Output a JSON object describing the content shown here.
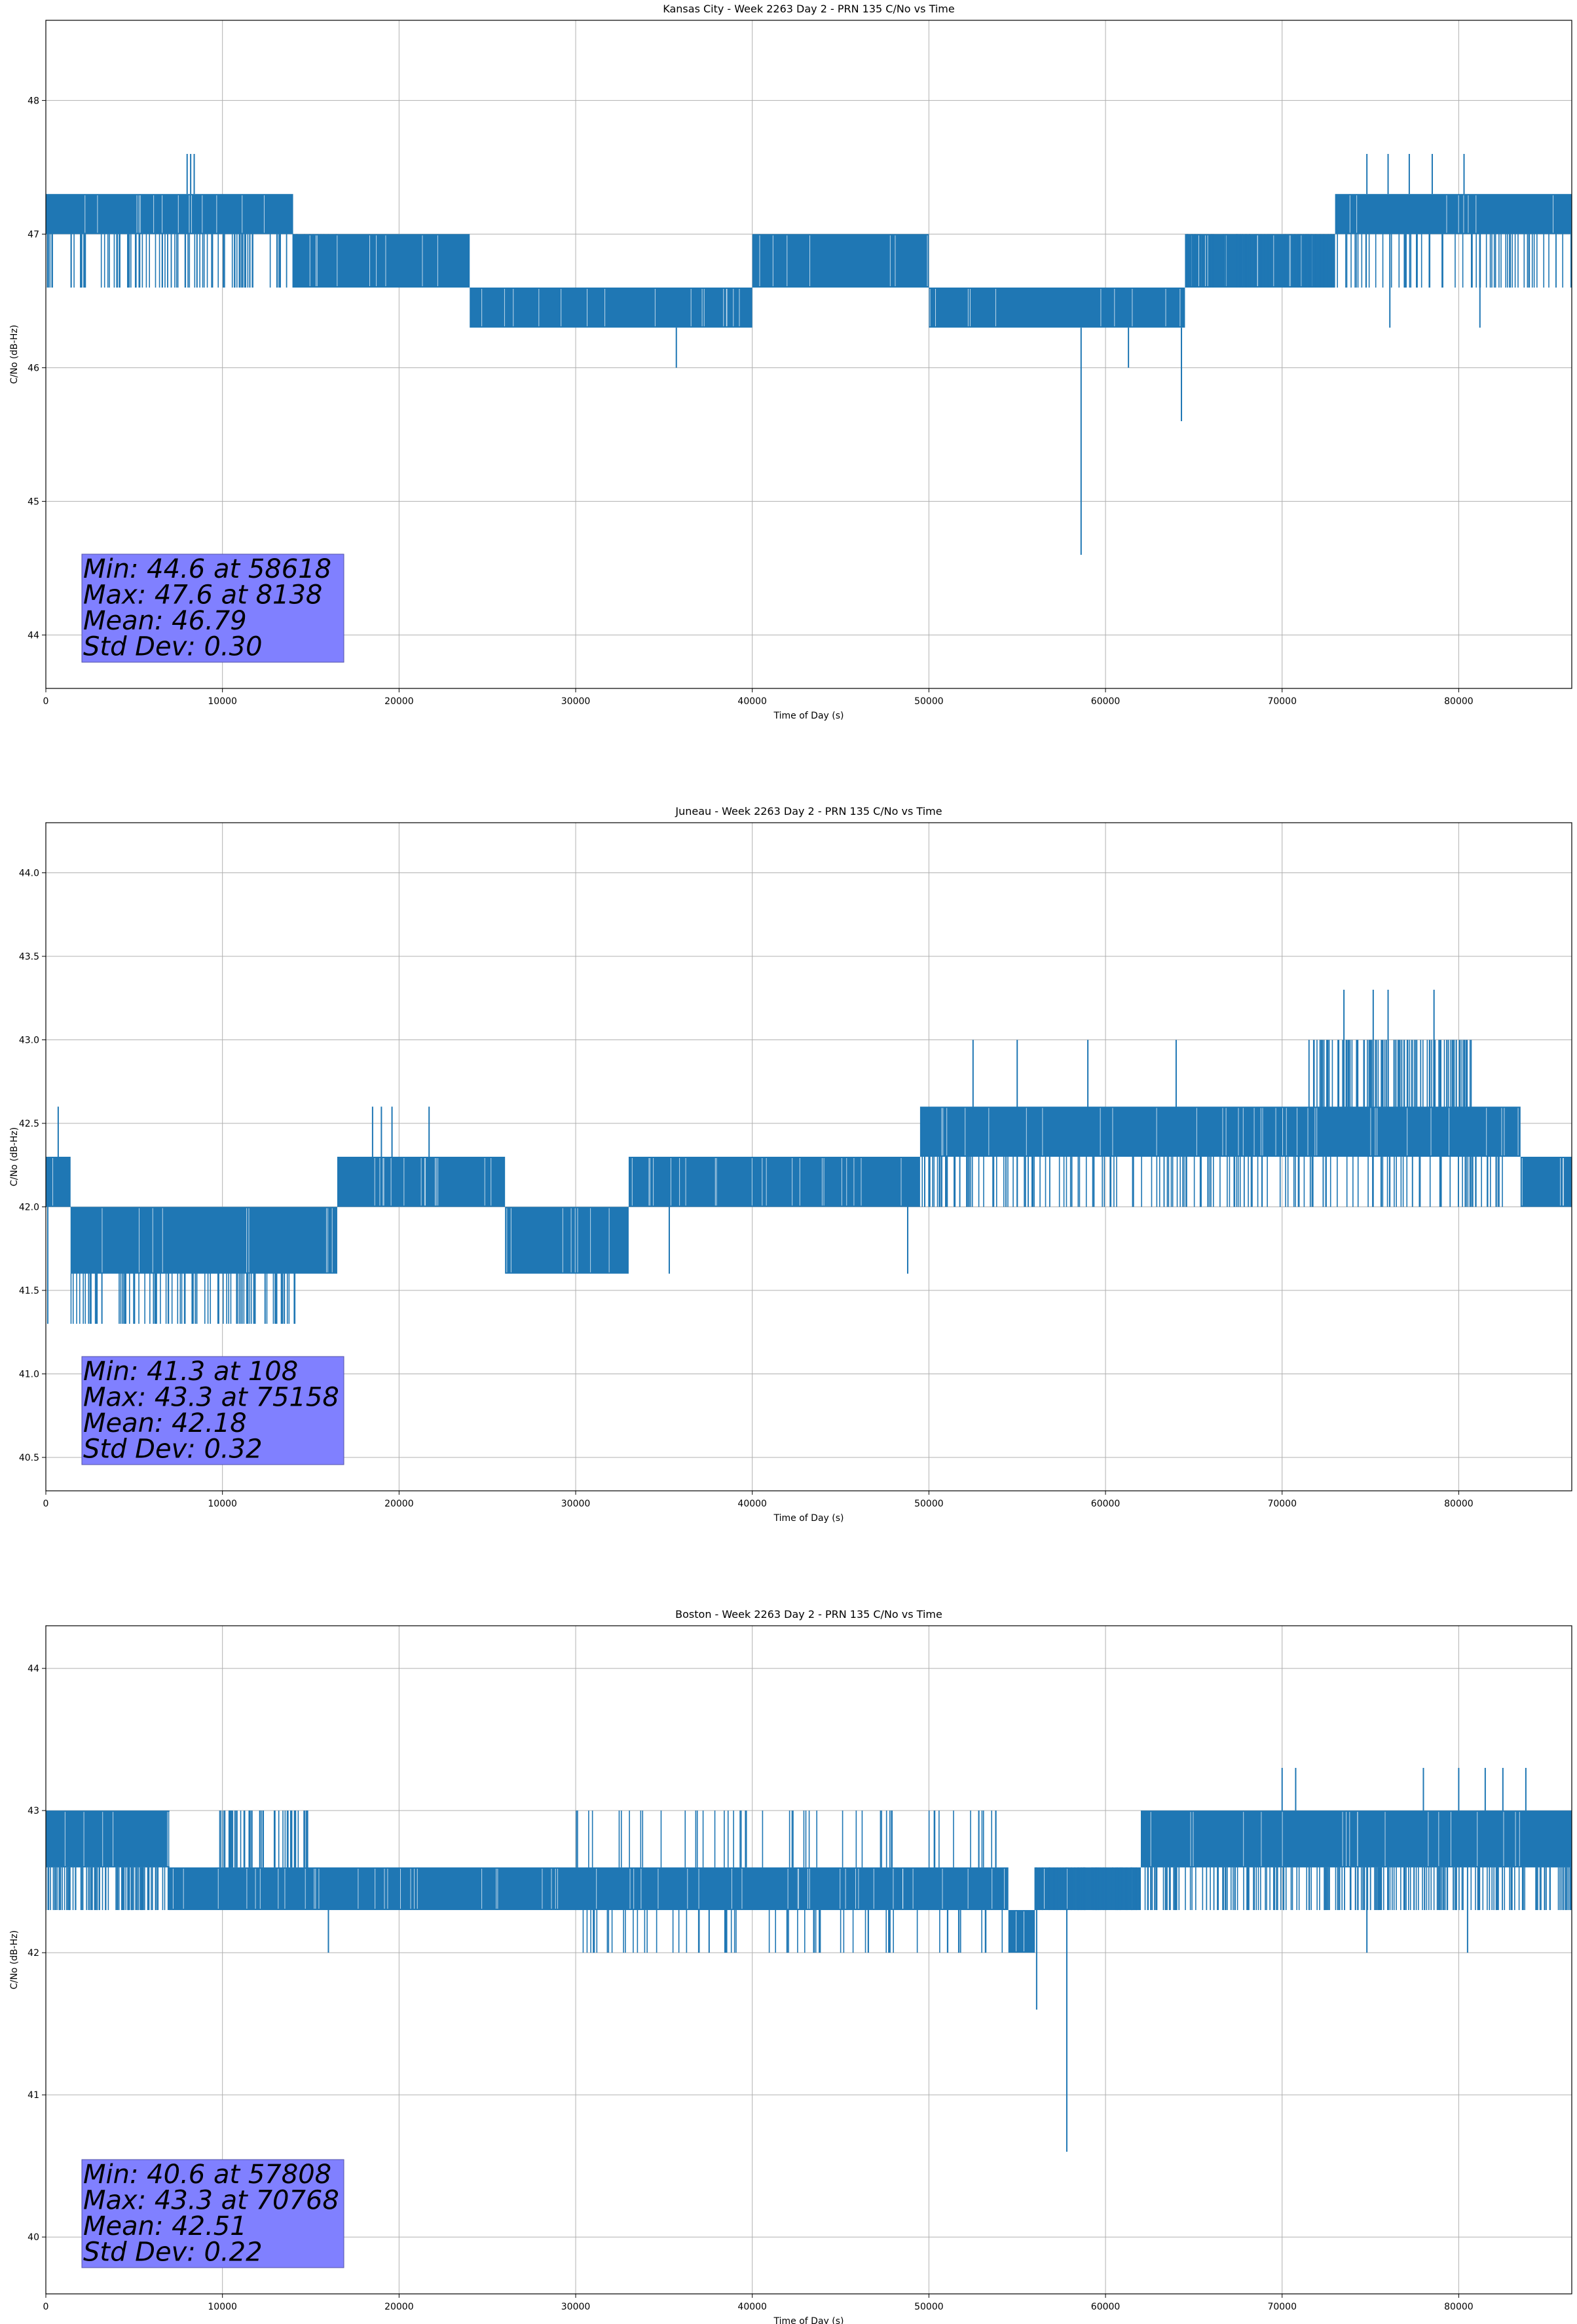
{
  "figure": {
    "background": "#ffffff",
    "line_color": "#1f77b4",
    "stats_box_color": "#8080ff",
    "grid_color": "#b0b0b0"
  },
  "chart_data": [
    {
      "type": "line",
      "title": "Kansas City - Week 2263 Day 2 - PRN 135 C/No vs Time",
      "xlabel": "Time of Day (s)",
      "ylabel": "C/No (dB-Hz)",
      "xlim": [
        0,
        86400
      ],
      "ylim": [
        43.6,
        48.6
      ],
      "xticks": [
        0,
        10000,
        20000,
        30000,
        40000,
        50000,
        60000,
        70000,
        80000
      ],
      "yticks": [
        44,
        45,
        46,
        47,
        48
      ],
      "ytick_labels": [
        "44",
        "45",
        "46",
        "47",
        "48"
      ],
      "grid": true,
      "series": [
        {
          "segments": [
            {
              "x": [
                0,
                14000
              ],
              "upper": 47.3,
              "lower": 47.0
            },
            {
              "x": [
                0,
                16500
              ],
              "upper": 47.0,
              "lower": 46.6,
              "density": 0.25
            },
            {
              "x": [
                14000,
                24000
              ],
              "upper": 47.0,
              "lower": 46.6
            },
            {
              "x": [
                24000,
                40000
              ],
              "upper": 46.6,
              "lower": 46.3
            },
            {
              "x": [
                40000,
                50000
              ],
              "upper": 47.0,
              "lower": 46.6
            },
            {
              "x": [
                50000,
                64500
              ],
              "upper": 46.6,
              "lower": 46.3
            },
            {
              "x": [
                64500,
                73000
              ],
              "upper": 47.0,
              "lower": 46.6
            },
            {
              "x": [
                73000,
                86400
              ],
              "upper": 47.3,
              "lower": 47.0
            },
            {
              "x": [
                64500,
                86400
              ],
              "upper": 47.0,
              "lower": 46.6,
              "density": 0.2
            }
          ],
          "spikes_up": [
            [
              8000,
              47.6
            ],
            [
              8200,
              47.6
            ],
            [
              8400,
              47.6
            ],
            [
              74800,
              47.6
            ],
            [
              76000,
              47.6
            ],
            [
              77200,
              47.6
            ],
            [
              78500,
              47.6
            ],
            [
              80300,
              47.6
            ]
          ],
          "spikes_down": [
            [
              35700,
              46.0
            ],
            [
              58618,
              44.6
            ],
            [
              61300,
              46.0
            ],
            [
              64300,
              45.6
            ],
            [
              76100,
              46.3
            ],
            [
              81200,
              46.3
            ]
          ]
        }
      ],
      "stats": {
        "min": "Min: 44.6 at 58618",
        "max": "Max: 47.6 at 8138",
        "mean": "Mean: 46.79",
        "std": "Std Dev: 0.30"
      }
    },
    {
      "type": "line",
      "title": "Juneau - Week 2263 Day 2 - PRN 135 C/No vs Time",
      "xlabel": "Time of Day (s)",
      "ylabel": "C/No (dB-Hz)",
      "xlim": [
        0,
        86400
      ],
      "ylim": [
        40.3,
        44.3
      ],
      "xticks": [
        0,
        10000,
        20000,
        30000,
        40000,
        50000,
        60000,
        70000,
        80000
      ],
      "yticks": [
        40.5,
        41.0,
        41.5,
        42.0,
        42.5,
        43.0,
        43.5,
        44.0
      ],
      "ytick_labels": [
        "40.5",
        "41.0",
        "41.5",
        "42.0",
        "42.5",
        "43.0",
        "43.5",
        "44.0"
      ],
      "grid": true,
      "series": [
        {
          "segments": [
            {
              "x": [
                0,
                1400
              ],
              "upper": 42.3,
              "lower": 42.0
            },
            {
              "x": [
                1400,
                16500
              ],
              "upper": 42.0,
              "lower": 41.6
            },
            {
              "x": [
                1400,
                14500
              ],
              "upper": 41.6,
              "lower": 41.3,
              "density": 0.25
            },
            {
              "x": [
                16500,
                26000
              ],
              "upper": 42.3,
              "lower": 42.0
            },
            {
              "x": [
                26000,
                33000
              ],
              "upper": 42.0,
              "lower": 41.6
            },
            {
              "x": [
                33000,
                49500
              ],
              "upper": 42.3,
              "lower": 42.0
            },
            {
              "x": [
                49500,
                83500
              ],
              "upper": 42.6,
              "lower": 42.3
            },
            {
              "x": [
                71500,
                81000
              ],
              "upper": 43.0,
              "lower": 42.6,
              "density": 0.45
            },
            {
              "x": [
                49500,
                83500
              ],
              "upper": 42.3,
              "lower": 42.0,
              "density": 0.2
            },
            {
              "x": [
                83500,
                86400
              ],
              "upper": 42.3,
              "lower": 42.0
            }
          ],
          "spikes_up": [
            [
              700,
              42.6
            ],
            [
              18500,
              42.6
            ],
            [
              19000,
              42.6
            ],
            [
              19600,
              42.6
            ],
            [
              21700,
              42.6
            ],
            [
              52500,
              43.0
            ],
            [
              55000,
              43.0
            ],
            [
              59000,
              43.0
            ],
            [
              64000,
              43.0
            ],
            [
              73500,
              43.3
            ],
            [
              75158,
              43.3
            ],
            [
              76000,
              43.3
            ],
            [
              78600,
              43.3
            ]
          ],
          "spikes_down": [
            [
              108,
              41.3
            ],
            [
              48800,
              41.6
            ],
            [
              35300,
              41.6
            ]
          ]
        }
      ],
      "stats": {
        "min": "Min: 41.3 at 108",
        "max": "Max: 43.3 at 75158",
        "mean": "Mean: 42.18",
        "std": "Std Dev: 0.32"
      }
    },
    {
      "type": "line",
      "title": "Boston - Week 2263 Day 2 - PRN 135 C/No vs Time",
      "xlabel": "Time of Day (s)",
      "ylabel": "C/No (dB-Hz)",
      "xlim": [
        0,
        86400
      ],
      "ylim": [
        39.6,
        44.3
      ],
      "xticks": [
        0,
        10000,
        20000,
        30000,
        40000,
        50000,
        60000,
        70000,
        80000
      ],
      "yticks": [
        40,
        41,
        42,
        43,
        44
      ],
      "ytick_labels": [
        "40",
        "41",
        "42",
        "43",
        "44"
      ],
      "grid": true,
      "series": [
        {
          "segments": [
            {
              "x": [
                0,
                7000
              ],
              "upper": 43.0,
              "lower": 42.6
            },
            {
              "x": [
                0,
                7000
              ],
              "upper": 42.6,
              "lower": 42.3,
              "density": 0.5
            },
            {
              "x": [
                7000,
                54500
              ],
              "upper": 42.6,
              "lower": 42.3
            },
            {
              "x": [
                9800,
                15000
              ],
              "upper": 43.0,
              "lower": 42.6,
              "density": 0.35
            },
            {
              "x": [
                30000,
                54500
              ],
              "upper": 43.0,
              "lower": 42.6,
              "density": 0.08
            },
            {
              "x": [
                30000,
                54500
              ],
              "upper": 42.3,
              "lower": 42.0,
              "density": 0.1
            },
            {
              "x": [
                54500,
                56000
              ],
              "upper": 42.3,
              "lower": 42.0
            },
            {
              "x": [
                56000,
                62000
              ],
              "upper": 42.6,
              "lower": 42.3
            },
            {
              "x": [
                62000,
                86400
              ],
              "upper": 43.0,
              "lower": 42.6
            },
            {
              "x": [
                56000,
                86400
              ],
              "upper": 42.6,
              "lower": 42.3,
              "density": 0.35
            }
          ],
          "spikes_up": [
            [
              70000,
              43.3
            ],
            [
              70768,
              43.3
            ],
            [
              78000,
              43.3
            ],
            [
              80000,
              43.3
            ],
            [
              81500,
              43.3
            ],
            [
              82500,
              43.3
            ],
            [
              83800,
              43.3
            ]
          ],
          "spikes_down": [
            [
              16000,
              42.0
            ],
            [
              56100,
              41.6
            ],
            [
              57808,
              40.6
            ],
            [
              74800,
              42.0
            ],
            [
              80500,
              42.0
            ]
          ]
        }
      ],
      "stats": {
        "min": "Min: 40.6 at 57808",
        "max": "Max: 43.3 at 70768",
        "mean": "Mean: 42.51",
        "std": "Std Dev: 0.22"
      }
    }
  ]
}
